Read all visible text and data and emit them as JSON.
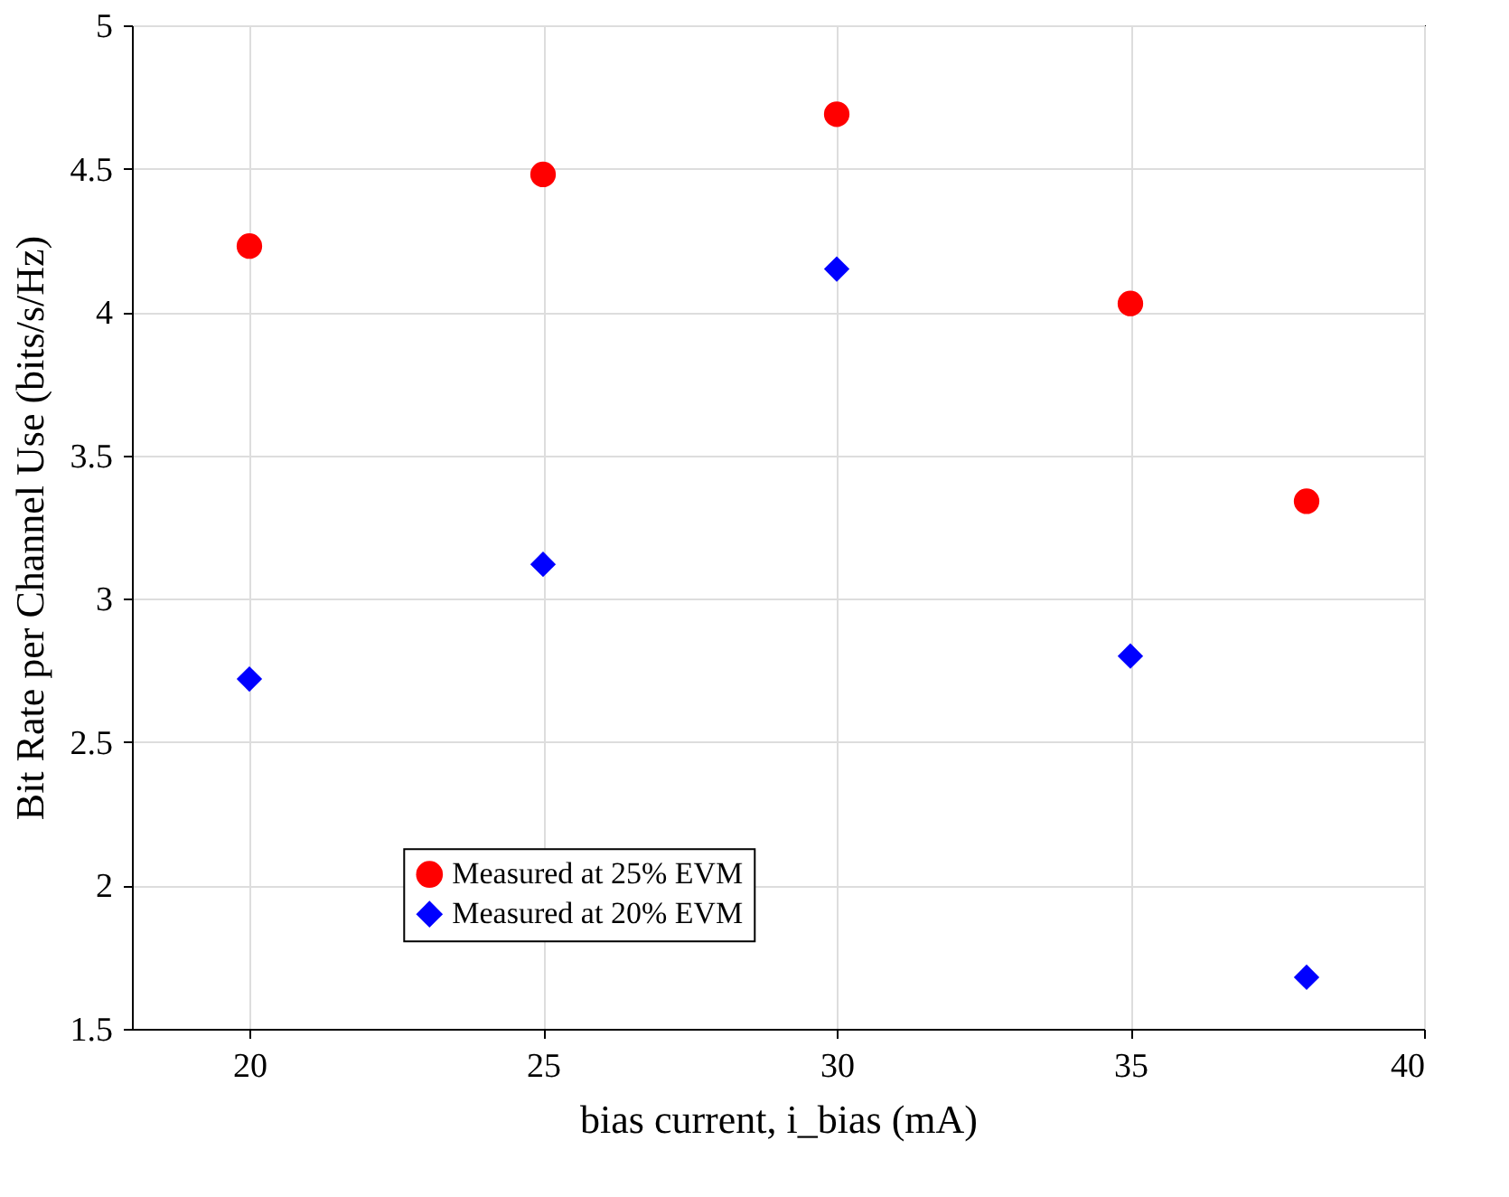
{
  "chart_data": {
    "type": "scatter",
    "xlabel": "bias current, i_bias (mA)",
    "ylabel": "Bit Rate per Channel Use (bits/s/Hz)",
    "x": [
      20,
      25,
      30,
      35,
      38
    ],
    "series": [
      {
        "name": "Measured at 25% EVM",
        "color": "#ff0000",
        "marker": "circle",
        "values": [
          4.23,
          4.48,
          4.69,
          4.03,
          3.34
        ]
      },
      {
        "name": "Measured at 20% EVM",
        "color": "#0000ff",
        "marker": "diamond",
        "values": [
          2.72,
          3.12,
          4.15,
          2.8,
          1.68
        ]
      }
    ],
    "xlim": [
      18,
      40
    ],
    "xticks": [
      20,
      25,
      30,
      35,
      40
    ],
    "ylim": [
      1.5,
      5
    ],
    "yticks": [
      1.5,
      2,
      2.5,
      3,
      3.5,
      4,
      4.5,
      5
    ],
    "grid": true,
    "legend": "bottom"
  }
}
